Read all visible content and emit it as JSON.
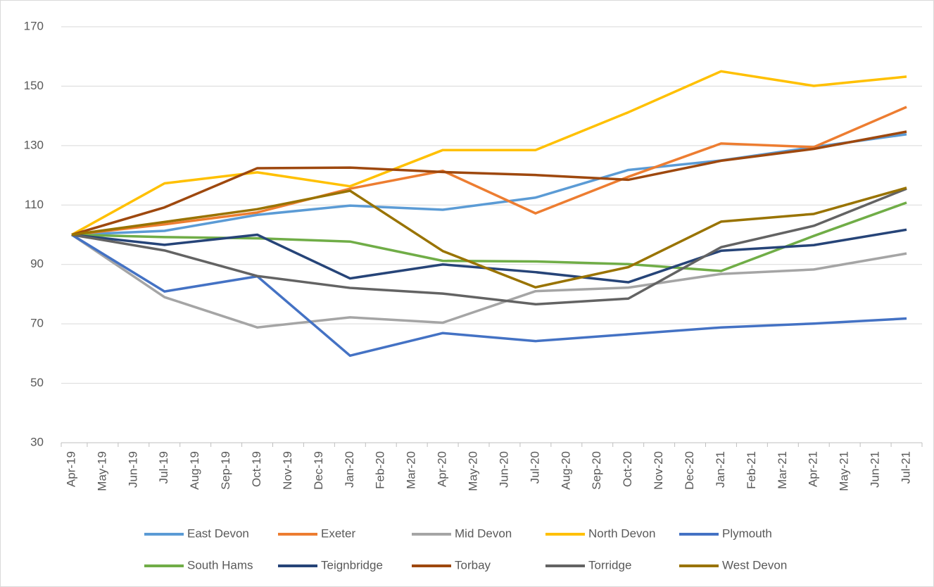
{
  "chart_data": {
    "type": "line",
    "categories": [
      "Apr-19",
      "May-19",
      "Jun-19",
      "Jul-19",
      "Aug-19",
      "Sep-19",
      "Oct-19",
      "Nov-19",
      "Dec-19",
      "Jan-20",
      "Feb-20",
      "Mar-20",
      "Apr-20",
      "May-20",
      "Jun-20",
      "Jul-20",
      "Aug-20",
      "Sep-20",
      "Oct-20",
      "Nov-20",
      "Dec-20",
      "Jan-21",
      "Feb-21",
      "Mar-21",
      "Apr-21",
      "May-21",
      "Jun-21",
      "Jul-21"
    ],
    "series": [
      {
        "name": "East Devon",
        "color": "#5b9bd5",
        "values": [
          100,
          null,
          null,
          101.3,
          null,
          null,
          106.7,
          null,
          null,
          109.8,
          null,
          null,
          108.4,
          null,
          null,
          112.5,
          null,
          null,
          121.8,
          null,
          null,
          125,
          null,
          null,
          129.5,
          null,
          null,
          133.8
        ]
      },
      {
        "name": "Exeter",
        "color": "#ed7d31",
        "values": [
          100,
          null,
          null,
          103.5,
          null,
          null,
          107.5,
          null,
          null,
          115.5,
          null,
          null,
          121.5,
          null,
          null,
          107.2,
          null,
          null,
          119.5,
          null,
          null,
          130.7,
          null,
          null,
          129.5,
          null,
          null,
          143
        ]
      },
      {
        "name": "Mid Devon",
        "color": "#a5a5a5",
        "values": [
          100,
          null,
          null,
          79,
          null,
          null,
          68.8,
          null,
          null,
          72.2,
          null,
          null,
          70.4,
          null,
          null,
          81,
          null,
          null,
          82.2,
          null,
          null,
          86.8,
          null,
          null,
          88.3,
          null,
          null,
          93.7
        ]
      },
      {
        "name": "North Devon",
        "color": "#ffc000",
        "values": [
          100,
          null,
          null,
          117.3,
          null,
          null,
          121,
          null,
          null,
          116.3,
          null,
          null,
          128.5,
          null,
          null,
          128.5,
          null,
          null,
          141.2,
          null,
          null,
          155,
          null,
          null,
          150.1,
          null,
          null,
          153.2
        ]
      },
      {
        "name": "Plymouth",
        "color": "#4472c4",
        "values": [
          100,
          null,
          null,
          80.9,
          null,
          null,
          86,
          null,
          null,
          59.3,
          null,
          null,
          66.9,
          null,
          null,
          64.2,
          null,
          null,
          66.5,
          null,
          null,
          68.8,
          null,
          null,
          70.1,
          null,
          null,
          71.8
        ]
      },
      {
        "name": "South Hams",
        "color": "#70ad47",
        "values": [
          100,
          null,
          null,
          99.2,
          null,
          null,
          98.8,
          null,
          null,
          97.7,
          null,
          null,
          91.2,
          null,
          null,
          91,
          null,
          null,
          90.1,
          null,
          null,
          87.8,
          null,
          null,
          99.6,
          null,
          null,
          110.8
        ]
      },
      {
        "name": "Teignbridge",
        "color": "#264478",
        "values": [
          100,
          null,
          null,
          96.6,
          null,
          null,
          100,
          null,
          null,
          85.3,
          null,
          null,
          90,
          null,
          null,
          87.4,
          null,
          null,
          84,
          null,
          null,
          94.6,
          null,
          null,
          96.5,
          null,
          null,
          101.7
        ]
      },
      {
        "name": "Torbay",
        "color": "#9e480e",
        "values": [
          100,
          null,
          null,
          109.2,
          null,
          null,
          122.4,
          null,
          null,
          122.6,
          null,
          null,
          121.1,
          null,
          null,
          120.1,
          null,
          null,
          118.5,
          null,
          null,
          124.9,
          null,
          null,
          128.9,
          null,
          null,
          134.7
        ]
      },
      {
        "name": "Torridge",
        "color": "#636363",
        "values": [
          100,
          null,
          null,
          94.7,
          null,
          null,
          86.1,
          null,
          null,
          82.1,
          null,
          null,
          80.2,
          null,
          null,
          76.6,
          null,
          null,
          78.5,
          null,
          null,
          95.8,
          null,
          null,
          103,
          null,
          null,
          115.5
        ]
      },
      {
        "name": "West Devon",
        "color": "#997300",
        "values": [
          100,
          null,
          null,
          104.3,
          null,
          null,
          108.6,
          null,
          null,
          114.8,
          null,
          null,
          94.5,
          null,
          null,
          82.3,
          null,
          null,
          89.1,
          null,
          null,
          104.4,
          null,
          null,
          107,
          null,
          null,
          115.8
        ]
      }
    ],
    "ylim": [
      30,
      170
    ],
    "yticks": [
      30,
      50,
      70,
      90,
      110,
      130,
      150,
      170
    ],
    "grid": true,
    "span_gaps": true,
    "legend": "bottom"
  }
}
